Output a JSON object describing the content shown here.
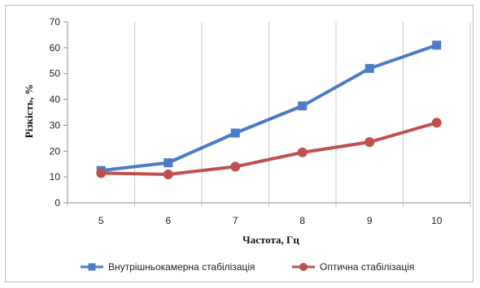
{
  "chart_data": {
    "type": "line",
    "title": "",
    "xlabel": "Частота, Гц",
    "ylabel": "Різкість, %",
    "x": [
      5,
      6,
      7,
      8,
      9,
      10
    ],
    "ylim": [
      0,
      70
    ],
    "yticks": [
      0,
      10,
      20,
      30,
      40,
      50,
      60,
      70
    ],
    "grid": "vertical",
    "legend_position": "bottom",
    "series": [
      {
        "name": "Внутрішньокамерна стабілізація",
        "color": "#4a7cc7",
        "marker": "square",
        "values": [
          12.5,
          15.5,
          27,
          37.5,
          52,
          61
        ]
      },
      {
        "name": "Оптична стабілізація",
        "color": "#c0504d",
        "marker": "circle",
        "values": [
          11.5,
          11,
          14,
          19.5,
          23.5,
          31
        ]
      }
    ]
  }
}
